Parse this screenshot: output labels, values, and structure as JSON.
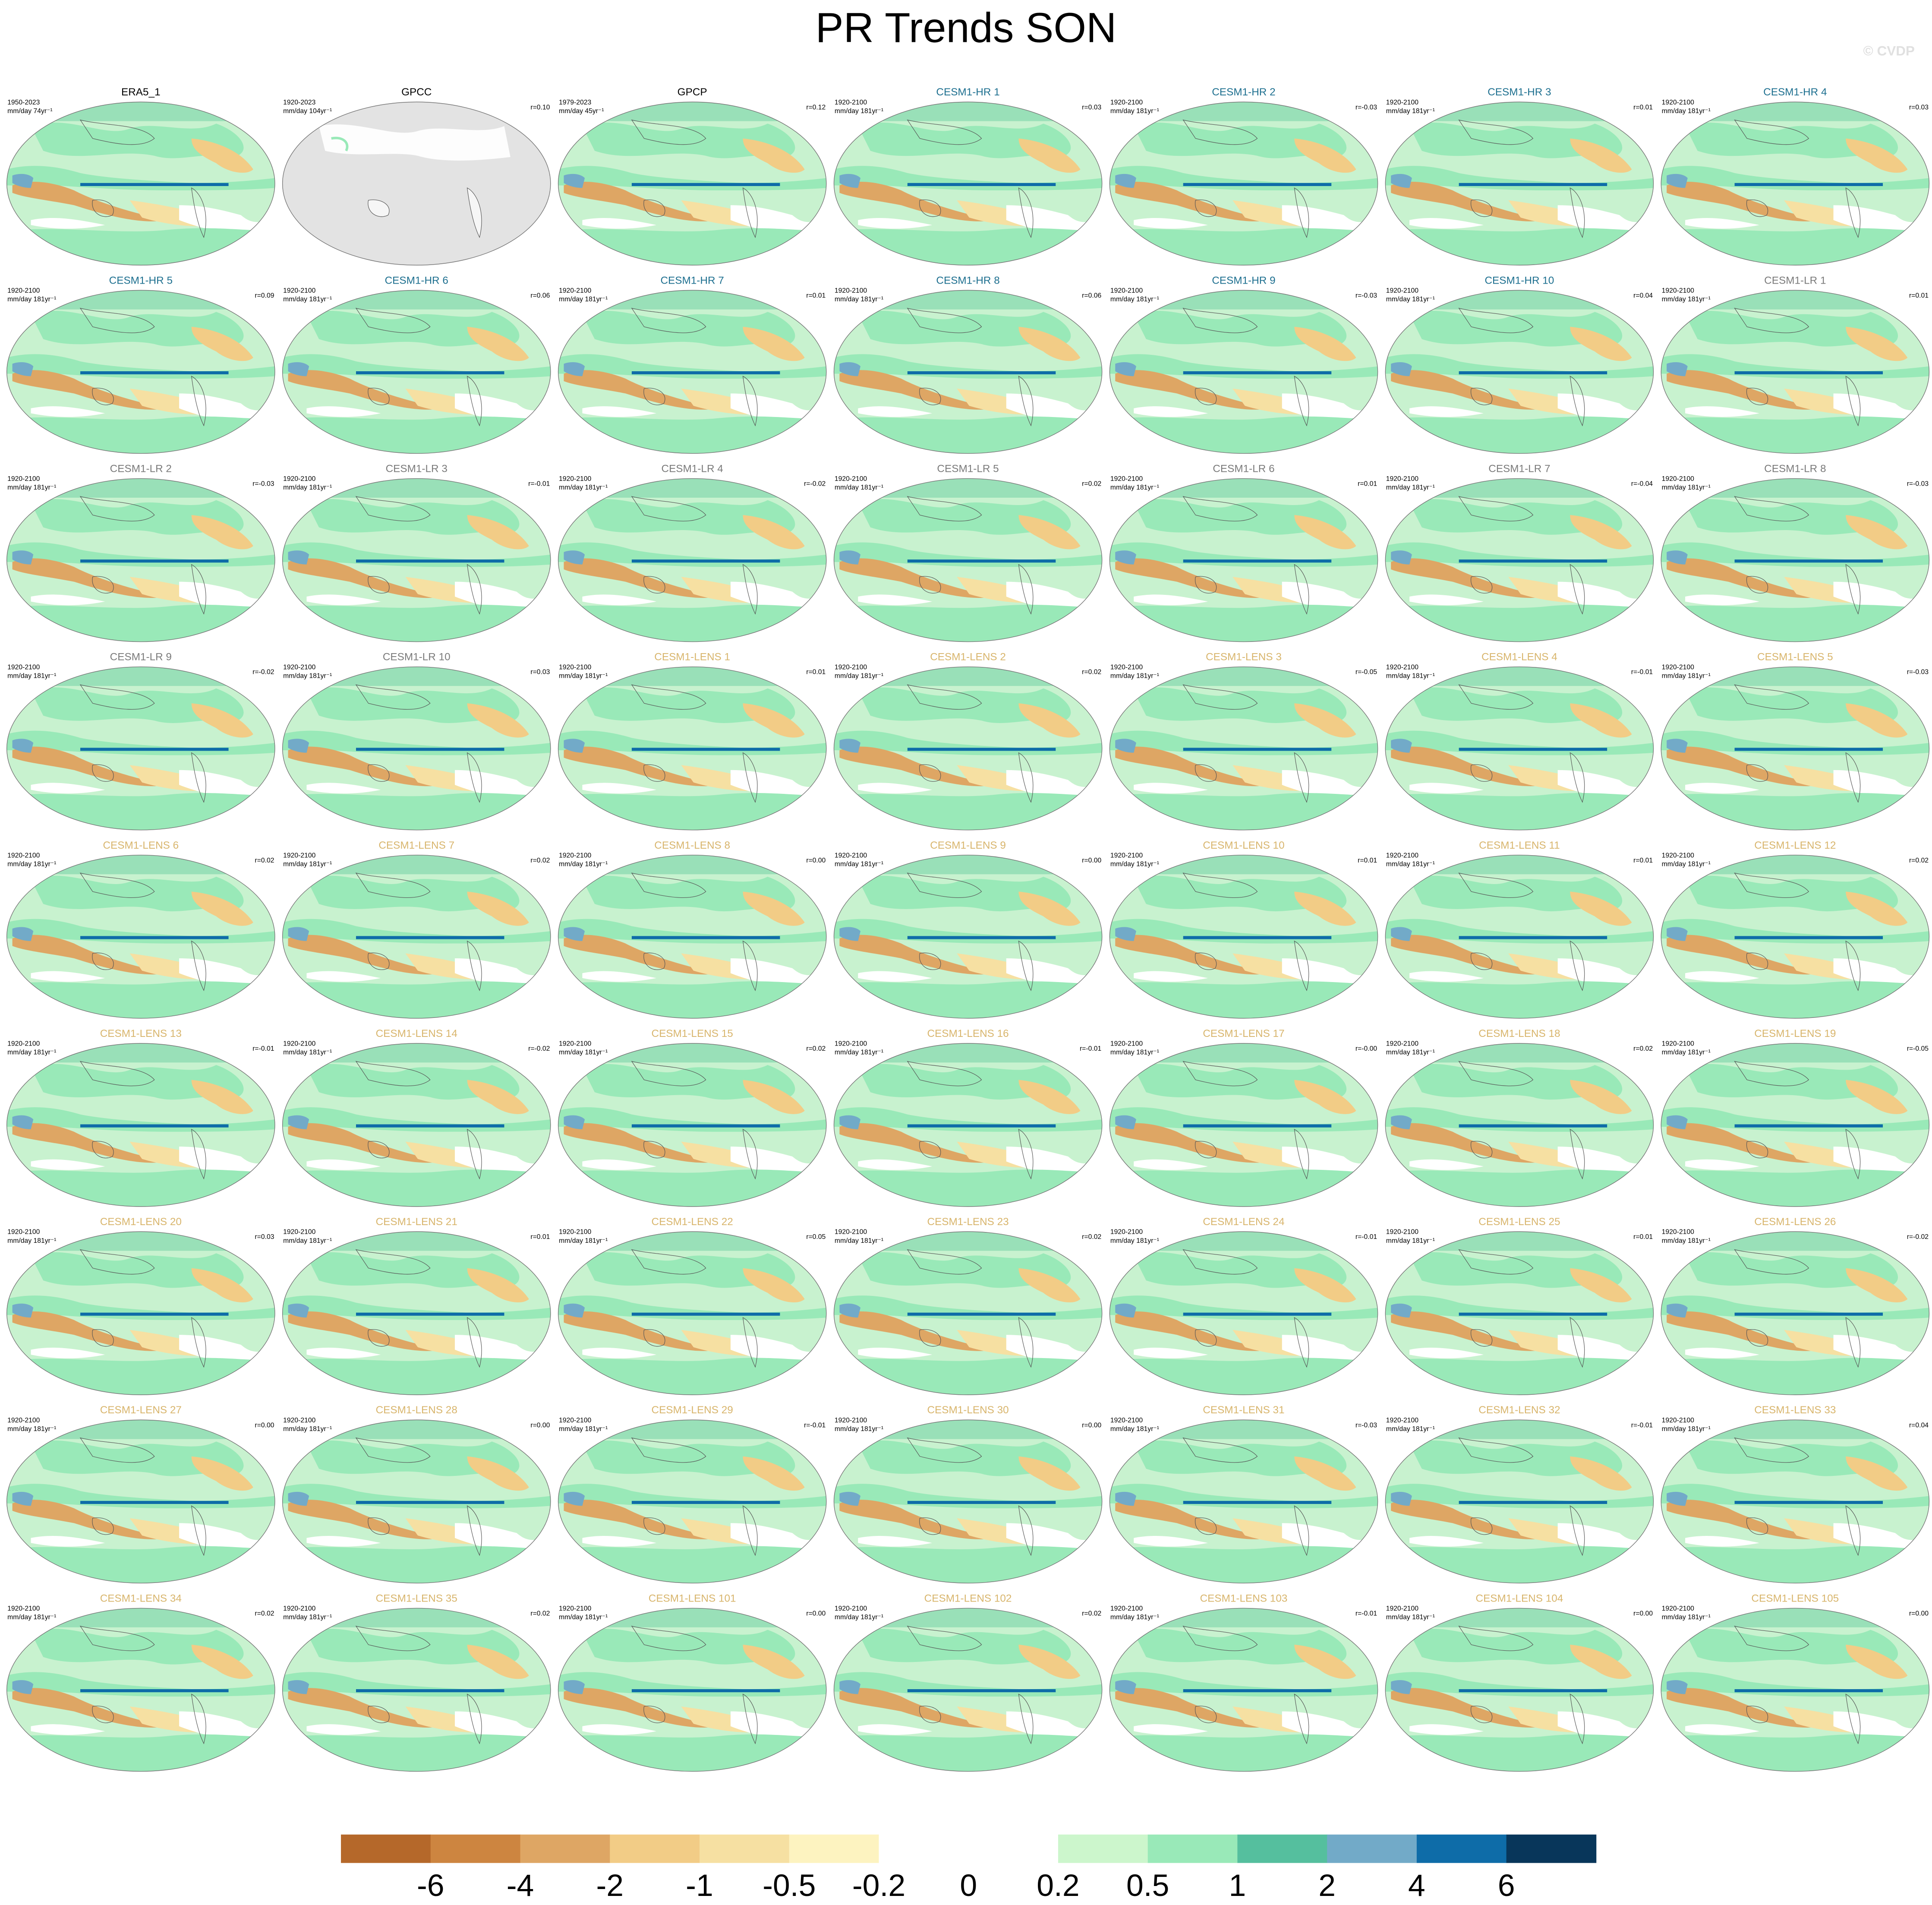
{
  "title": "PR Trends SON",
  "watermark": "© CVDP",
  "panels": [
    {
      "title": "ERA5_1",
      "period": "1950-2023",
      "units": "mm/day 74yr⁻¹",
      "r": null,
      "title_color": "#000000"
    },
    {
      "title": "GPCC",
      "period": "1920-2023",
      "units": "mm/day 104yr⁻¹",
      "r": "r=0.10",
      "title_color": "#000000"
    },
    {
      "title": "GPCP",
      "period": "1979-2023",
      "units": "mm/day 45yr⁻¹",
      "r": "r=0.12",
      "title_color": "#000000"
    },
    {
      "title": "CESM1-HR 1",
      "period": "1920-2100",
      "units": "mm/day 181yr⁻¹",
      "r": "r=0.03",
      "title_color": "#1d6f8f"
    },
    {
      "title": "CESM1-HR 2",
      "period": "1920-2100",
      "units": "mm/day 181yr⁻¹",
      "r": "r=-0.03",
      "title_color": "#1d6f8f"
    },
    {
      "title": "CESM1-HR 3",
      "period": "1920-2100",
      "units": "mm/day 181yr⁻¹",
      "r": "r=0.01",
      "title_color": "#1d6f8f"
    },
    {
      "title": "CESM1-HR 4",
      "period": "1920-2100",
      "units": "mm/day 181yr⁻¹",
      "r": "r=0.03",
      "title_color": "#1d6f8f"
    },
    {
      "title": "CESM1-HR 5",
      "period": "1920-2100",
      "units": "mm/day 181yr⁻¹",
      "r": "r=0.09",
      "title_color": "#1d6f8f"
    },
    {
      "title": "CESM1-HR 6",
      "period": "1920-2100",
      "units": "mm/day 181yr⁻¹",
      "r": "r=0.06",
      "title_color": "#1d6f8f"
    },
    {
      "title": "CESM1-HR 7",
      "period": "1920-2100",
      "units": "mm/day 181yr⁻¹",
      "r": "r=0.01",
      "title_color": "#1d6f8f"
    },
    {
      "title": "CESM1-HR 8",
      "period": "1920-2100",
      "units": "mm/day 181yr⁻¹",
      "r": "r=0.06",
      "title_color": "#1d6f8f"
    },
    {
      "title": "CESM1-HR 9",
      "period": "1920-2100",
      "units": "mm/day 181yr⁻¹",
      "r": "r=-0.03",
      "title_color": "#1d6f8f"
    },
    {
      "title": "CESM1-HR 10",
      "period": "1920-2100",
      "units": "mm/day 181yr⁻¹",
      "r": "r=0.04",
      "title_color": "#1d6f8f"
    },
    {
      "title": "CESM1-LR 1",
      "period": "1920-2100",
      "units": "mm/day 181yr⁻¹",
      "r": "r=0.01",
      "title_color": "#7a7a7a"
    },
    {
      "title": "CESM1-LR 2",
      "period": "1920-2100",
      "units": "mm/day 181yr⁻¹",
      "r": "r=-0.03",
      "title_color": "#7a7a7a"
    },
    {
      "title": "CESM1-LR 3",
      "period": "1920-2100",
      "units": "mm/day 181yr⁻¹",
      "r": "r=-0.01",
      "title_color": "#7a7a7a"
    },
    {
      "title": "CESM1-LR 4",
      "period": "1920-2100",
      "units": "mm/day 181yr⁻¹",
      "r": "r=-0.02",
      "title_color": "#7a7a7a"
    },
    {
      "title": "CESM1-LR 5",
      "period": "1920-2100",
      "units": "mm/day 181yr⁻¹",
      "r": "r=0.02",
      "title_color": "#7a7a7a"
    },
    {
      "title": "CESM1-LR 6",
      "period": "1920-2100",
      "units": "mm/day 181yr⁻¹",
      "r": "r=0.01",
      "title_color": "#7a7a7a"
    },
    {
      "title": "CESM1-LR 7",
      "period": "1920-2100",
      "units": "mm/day 181yr⁻¹",
      "r": "r=-0.04",
      "title_color": "#7a7a7a"
    },
    {
      "title": "CESM1-LR 8",
      "period": "1920-2100",
      "units": "mm/day 181yr⁻¹",
      "r": "r=-0.03",
      "title_color": "#7a7a7a"
    },
    {
      "title": "CESM1-LR 9",
      "period": "1920-2100",
      "units": "mm/day 181yr⁻¹",
      "r": "r=-0.02",
      "title_color": "#7a7a7a"
    },
    {
      "title": "CESM1-LR 10",
      "period": "1920-2100",
      "units": "mm/day 181yr⁻¹",
      "r": "r=0.03",
      "title_color": "#7a7a7a"
    },
    {
      "title": "CESM1-LENS 1",
      "period": "1920-2100",
      "units": "mm/day 181yr⁻¹",
      "r": "r=0.01",
      "title_color": "#d8b56c"
    },
    {
      "title": "CESM1-LENS 2",
      "period": "1920-2100",
      "units": "mm/day 181yr⁻¹",
      "r": "r=0.02",
      "title_color": "#d8b56c"
    },
    {
      "title": "CESM1-LENS 3",
      "period": "1920-2100",
      "units": "mm/day 181yr⁻¹",
      "r": "r=-0.05",
      "title_color": "#d8b56c"
    },
    {
      "title": "CESM1-LENS 4",
      "period": "1920-2100",
      "units": "mm/day 181yr⁻¹",
      "r": "r=-0.01",
      "title_color": "#d8b56c"
    },
    {
      "title": "CESM1-LENS 5",
      "period": "1920-2100",
      "units": "mm/day 181yr⁻¹",
      "r": "r=-0.03",
      "title_color": "#d8b56c"
    },
    {
      "title": "CESM1-LENS 6",
      "period": "1920-2100",
      "units": "mm/day 181yr⁻¹",
      "r": "r=0.02",
      "title_color": "#d8b56c"
    },
    {
      "title": "CESM1-LENS 7",
      "period": "1920-2100",
      "units": "mm/day 181yr⁻¹",
      "r": "r=0.02",
      "title_color": "#d8b56c"
    },
    {
      "title": "CESM1-LENS 8",
      "period": "1920-2100",
      "units": "mm/day 181yr⁻¹",
      "r": "r=0.00",
      "title_color": "#d8b56c"
    },
    {
      "title": "CESM1-LENS 9",
      "period": "1920-2100",
      "units": "mm/day 181yr⁻¹",
      "r": "r=0.00",
      "title_color": "#d8b56c"
    },
    {
      "title": "CESM1-LENS 10",
      "period": "1920-2100",
      "units": "mm/day 181yr⁻¹",
      "r": "r=0.01",
      "title_color": "#d8b56c"
    },
    {
      "title": "CESM1-LENS 11",
      "period": "1920-2100",
      "units": "mm/day 181yr⁻¹",
      "r": "r=0.01",
      "title_color": "#d8b56c"
    },
    {
      "title": "CESM1-LENS 12",
      "period": "1920-2100",
      "units": "mm/day 181yr⁻¹",
      "r": "r=0.02",
      "title_color": "#d8b56c"
    },
    {
      "title": "CESM1-LENS 13",
      "period": "1920-2100",
      "units": "mm/day 181yr⁻¹",
      "r": "r=-0.01",
      "title_color": "#d8b56c"
    },
    {
      "title": "CESM1-LENS 14",
      "period": "1920-2100",
      "units": "mm/day 181yr⁻¹",
      "r": "r=-0.02",
      "title_color": "#d8b56c"
    },
    {
      "title": "CESM1-LENS 15",
      "period": "1920-2100",
      "units": "mm/day 181yr⁻¹",
      "r": "r=0.02",
      "title_color": "#d8b56c"
    },
    {
      "title": "CESM1-LENS 16",
      "period": "1920-2100",
      "units": "mm/day 181yr⁻¹",
      "r": "r=-0.01",
      "title_color": "#d8b56c"
    },
    {
      "title": "CESM1-LENS 17",
      "period": "1920-2100",
      "units": "mm/day 181yr⁻¹",
      "r": "r=-0.00",
      "title_color": "#d8b56c"
    },
    {
      "title": "CESM1-LENS 18",
      "period": "1920-2100",
      "units": "mm/day 181yr⁻¹",
      "r": "r=0.02",
      "title_color": "#d8b56c"
    },
    {
      "title": "CESM1-LENS 19",
      "period": "1920-2100",
      "units": "mm/day 181yr⁻¹",
      "r": "r=-0.05",
      "title_color": "#d8b56c"
    },
    {
      "title": "CESM1-LENS 20",
      "period": "1920-2100",
      "units": "mm/day 181yr⁻¹",
      "r": "r=0.03",
      "title_color": "#d8b56c"
    },
    {
      "title": "CESM1-LENS 21",
      "period": "1920-2100",
      "units": "mm/day 181yr⁻¹",
      "r": "r=0.01",
      "title_color": "#d8b56c"
    },
    {
      "title": "CESM1-LENS 22",
      "period": "1920-2100",
      "units": "mm/day 181yr⁻¹",
      "r": "r=0.05",
      "title_color": "#d8b56c"
    },
    {
      "title": "CESM1-LENS 23",
      "period": "1920-2100",
      "units": "mm/day 181yr⁻¹",
      "r": "r=0.02",
      "title_color": "#d8b56c"
    },
    {
      "title": "CESM1-LENS 24",
      "period": "1920-2100",
      "units": "mm/day 181yr⁻¹",
      "r": "r=-0.01",
      "title_color": "#d8b56c"
    },
    {
      "title": "CESM1-LENS 25",
      "period": "1920-2100",
      "units": "mm/day 181yr⁻¹",
      "r": "r=0.01",
      "title_color": "#d8b56c"
    },
    {
      "title": "CESM1-LENS 26",
      "period": "1920-2100",
      "units": "mm/day 181yr⁻¹",
      "r": "r=-0.02",
      "title_color": "#d8b56c"
    },
    {
      "title": "CESM1-LENS 27",
      "period": "1920-2100",
      "units": "mm/day 181yr⁻¹",
      "r": "r=0.00",
      "title_color": "#d8b56c"
    },
    {
      "title": "CESM1-LENS 28",
      "period": "1920-2100",
      "units": "mm/day 181yr⁻¹",
      "r": "r=0.00",
      "title_color": "#d8b56c"
    },
    {
      "title": "CESM1-LENS 29",
      "period": "1920-2100",
      "units": "mm/day 181yr⁻¹",
      "r": "r=-0.01",
      "title_color": "#d8b56c"
    },
    {
      "title": "CESM1-LENS 30",
      "period": "1920-2100",
      "units": "mm/day 181yr⁻¹",
      "r": "r=0.00",
      "title_color": "#d8b56c"
    },
    {
      "title": "CESM1-LENS 31",
      "period": "1920-2100",
      "units": "mm/day 181yr⁻¹",
      "r": "r=-0.03",
      "title_color": "#d8b56c"
    },
    {
      "title": "CESM1-LENS 32",
      "period": "1920-2100",
      "units": "mm/day 181yr⁻¹",
      "r": "r=-0.01",
      "title_color": "#d8b56c"
    },
    {
      "title": "CESM1-LENS 33",
      "period": "1920-2100",
      "units": "mm/day 181yr⁻¹",
      "r": "r=0.04",
      "title_color": "#d8b56c"
    },
    {
      "title": "CESM1-LENS 34",
      "period": "1920-2100",
      "units": "mm/day 181yr⁻¹",
      "r": "r=0.02",
      "title_color": "#d8b56c"
    },
    {
      "title": "CESM1-LENS 35",
      "period": "1920-2100",
      "units": "mm/day 181yr⁻¹",
      "r": "r=0.02",
      "title_color": "#d8b56c"
    },
    {
      "title": "CESM1-LENS 101",
      "period": "1920-2100",
      "units": "mm/day 181yr⁻¹",
      "r": "r=0.00",
      "title_color": "#d8b56c"
    },
    {
      "title": "CESM1-LENS 102",
      "period": "1920-2100",
      "units": "mm/day 181yr⁻¹",
      "r": "r=0.02",
      "title_color": "#d8b56c"
    },
    {
      "title": "CESM1-LENS 103",
      "period": "1920-2100",
      "units": "mm/day 181yr⁻¹",
      "r": "r=-0.01",
      "title_color": "#d8b56c"
    },
    {
      "title": "CESM1-LENS 104",
      "period": "1920-2100",
      "units": "mm/day 181yr⁻¹",
      "r": "r=0.00",
      "title_color": "#d8b56c"
    },
    {
      "title": "CESM1-LENS 105",
      "period": "1920-2100",
      "units": "mm/day 181yr⁻¹",
      "r": "r=0.00",
      "title_color": "#d8b56c"
    }
  ],
  "colorbar": {
    "colors": [
      "#b5682a",
      "#cd8540",
      "#dea664",
      "#f2cc86",
      "#f6e0a2",
      "#fdf3c0",
      "#ffffff",
      "#ffffff",
      "#ccf6cc",
      "#99e9b8",
      "#55bf9e",
      "#72aac8",
      "#0e6ca8",
      "#08365a"
    ],
    "ticks": [
      -6,
      -4,
      -2,
      -1,
      -0.5,
      -0.2,
      0,
      0.2,
      0.5,
      1,
      2,
      4,
      6
    ]
  }
}
